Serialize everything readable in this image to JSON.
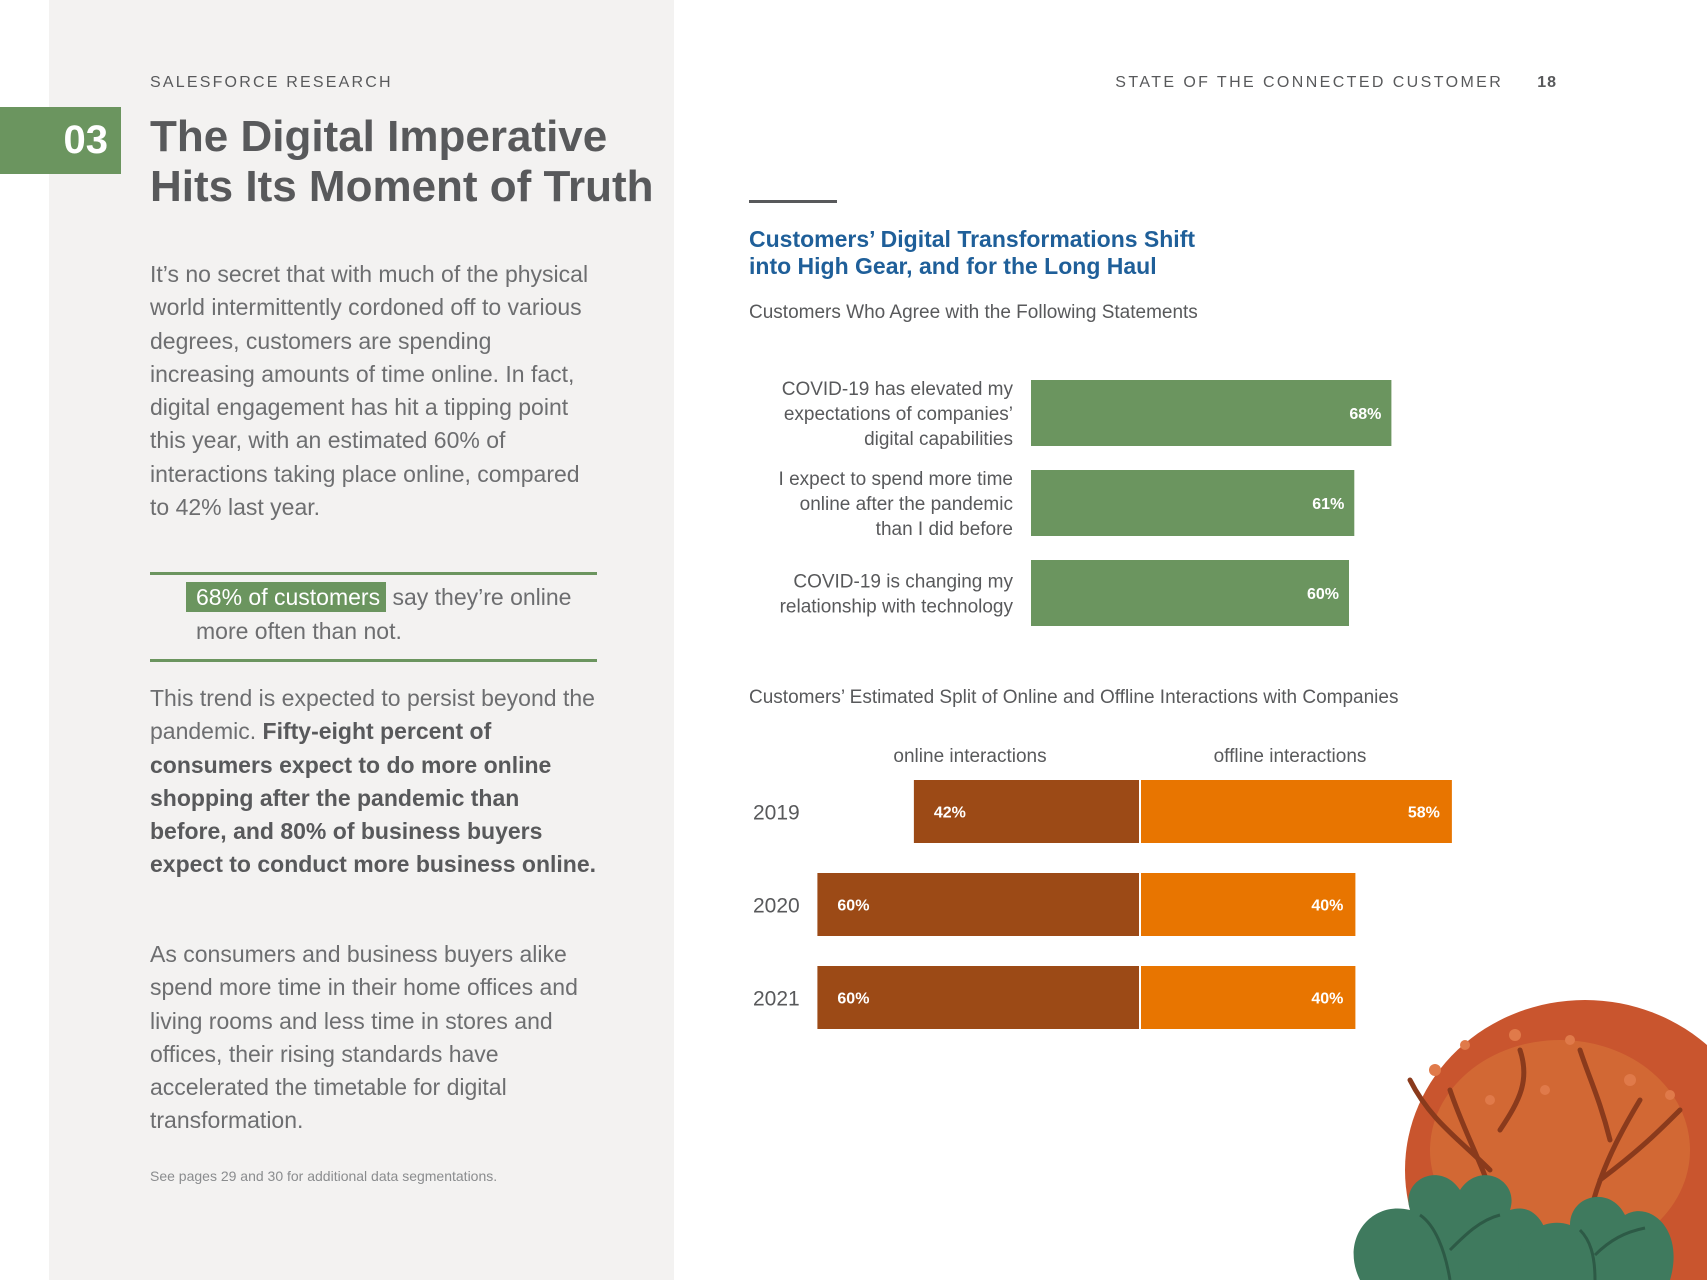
{
  "header": {
    "brand": "SALESFORCE RESEARCH",
    "report_title": "STATE OF THE CONNECTED CUSTOMER",
    "page_number": "18"
  },
  "chapter": {
    "number": "03",
    "title_line1": "The Digital Imperative",
    "title_line2": "Hits Its Moment of Truth"
  },
  "body": {
    "para1": "It’s no secret that with much of the physical world intermittently cordoned off to various degrees, customers are spending increasing amounts of time online. In fact, digital engagement has hit a tipping point this year, with an estimated 60% of interactions taking place online, compared to 42% last year.",
    "callout_highlight": "68% of customers",
    "callout_rest": " say they’re online more often than not.",
    "para2_plain": "This trend is expected to persist beyond the pandemic. ",
    "para2_bold": "Fifty-eight percent of consumers expect to do more online shopping after the pandemic than before, and 80% of business buyers expect to conduct more business online.",
    "para3": "As consumers and business buyers alike spend more time in their home offices and living rooms and less time in stores and offices, their rising standards have accelerated the timetable for digital transformation.",
    "footnote": "See pages 29 and 30 for additional data segmentations."
  },
  "figure": {
    "title_line1": "Customers’ Digital Transformations Shift",
    "title_line2": "into High Gear, and for the Long Haul"
  },
  "colors": {
    "green": "#6b955f",
    "online": "#9c4a16",
    "offline": "#e87500",
    "title_blue": "#1f5f99"
  },
  "chart_data": [
    {
      "type": "bar",
      "orientation": "horizontal",
      "title": "Customers Who Agree with the Following Statements",
      "categories": [
        [
          "COVID-19 has elevated my",
          "expectations of companies’",
          "digital capabilities"
        ],
        [
          "I expect to spend more time",
          "online after the pandemic",
          "than I did before"
        ],
        [
          "COVID-19 is changing my",
          "relationship with technology"
        ]
      ],
      "values": [
        68,
        61,
        60
      ],
      "labels": [
        "68%",
        "61%",
        "60%"
      ],
      "unit": "%",
      "xlim": [
        0,
        100
      ],
      "grid": false,
      "color": "#6b955f"
    },
    {
      "type": "bar",
      "orientation": "horizontal",
      "stacked": "diverging",
      "title": "Customers’ Estimated Split of Online and Offline Interactions with Companies",
      "categories": [
        "2019",
        "2020",
        "2021"
      ],
      "series": [
        {
          "name": "online interactions",
          "values": [
            42,
            60,
            60
          ],
          "labels": [
            "42%",
            "60%",
            "60%"
          ],
          "color": "#9c4a16"
        },
        {
          "name": "offline interactions",
          "values": [
            58,
            40,
            40
          ],
          "labels": [
            "58%",
            "40%",
            "40%"
          ],
          "color": "#e87500"
        }
      ],
      "unit": "%",
      "grid": false,
      "legend": "top"
    }
  ]
}
